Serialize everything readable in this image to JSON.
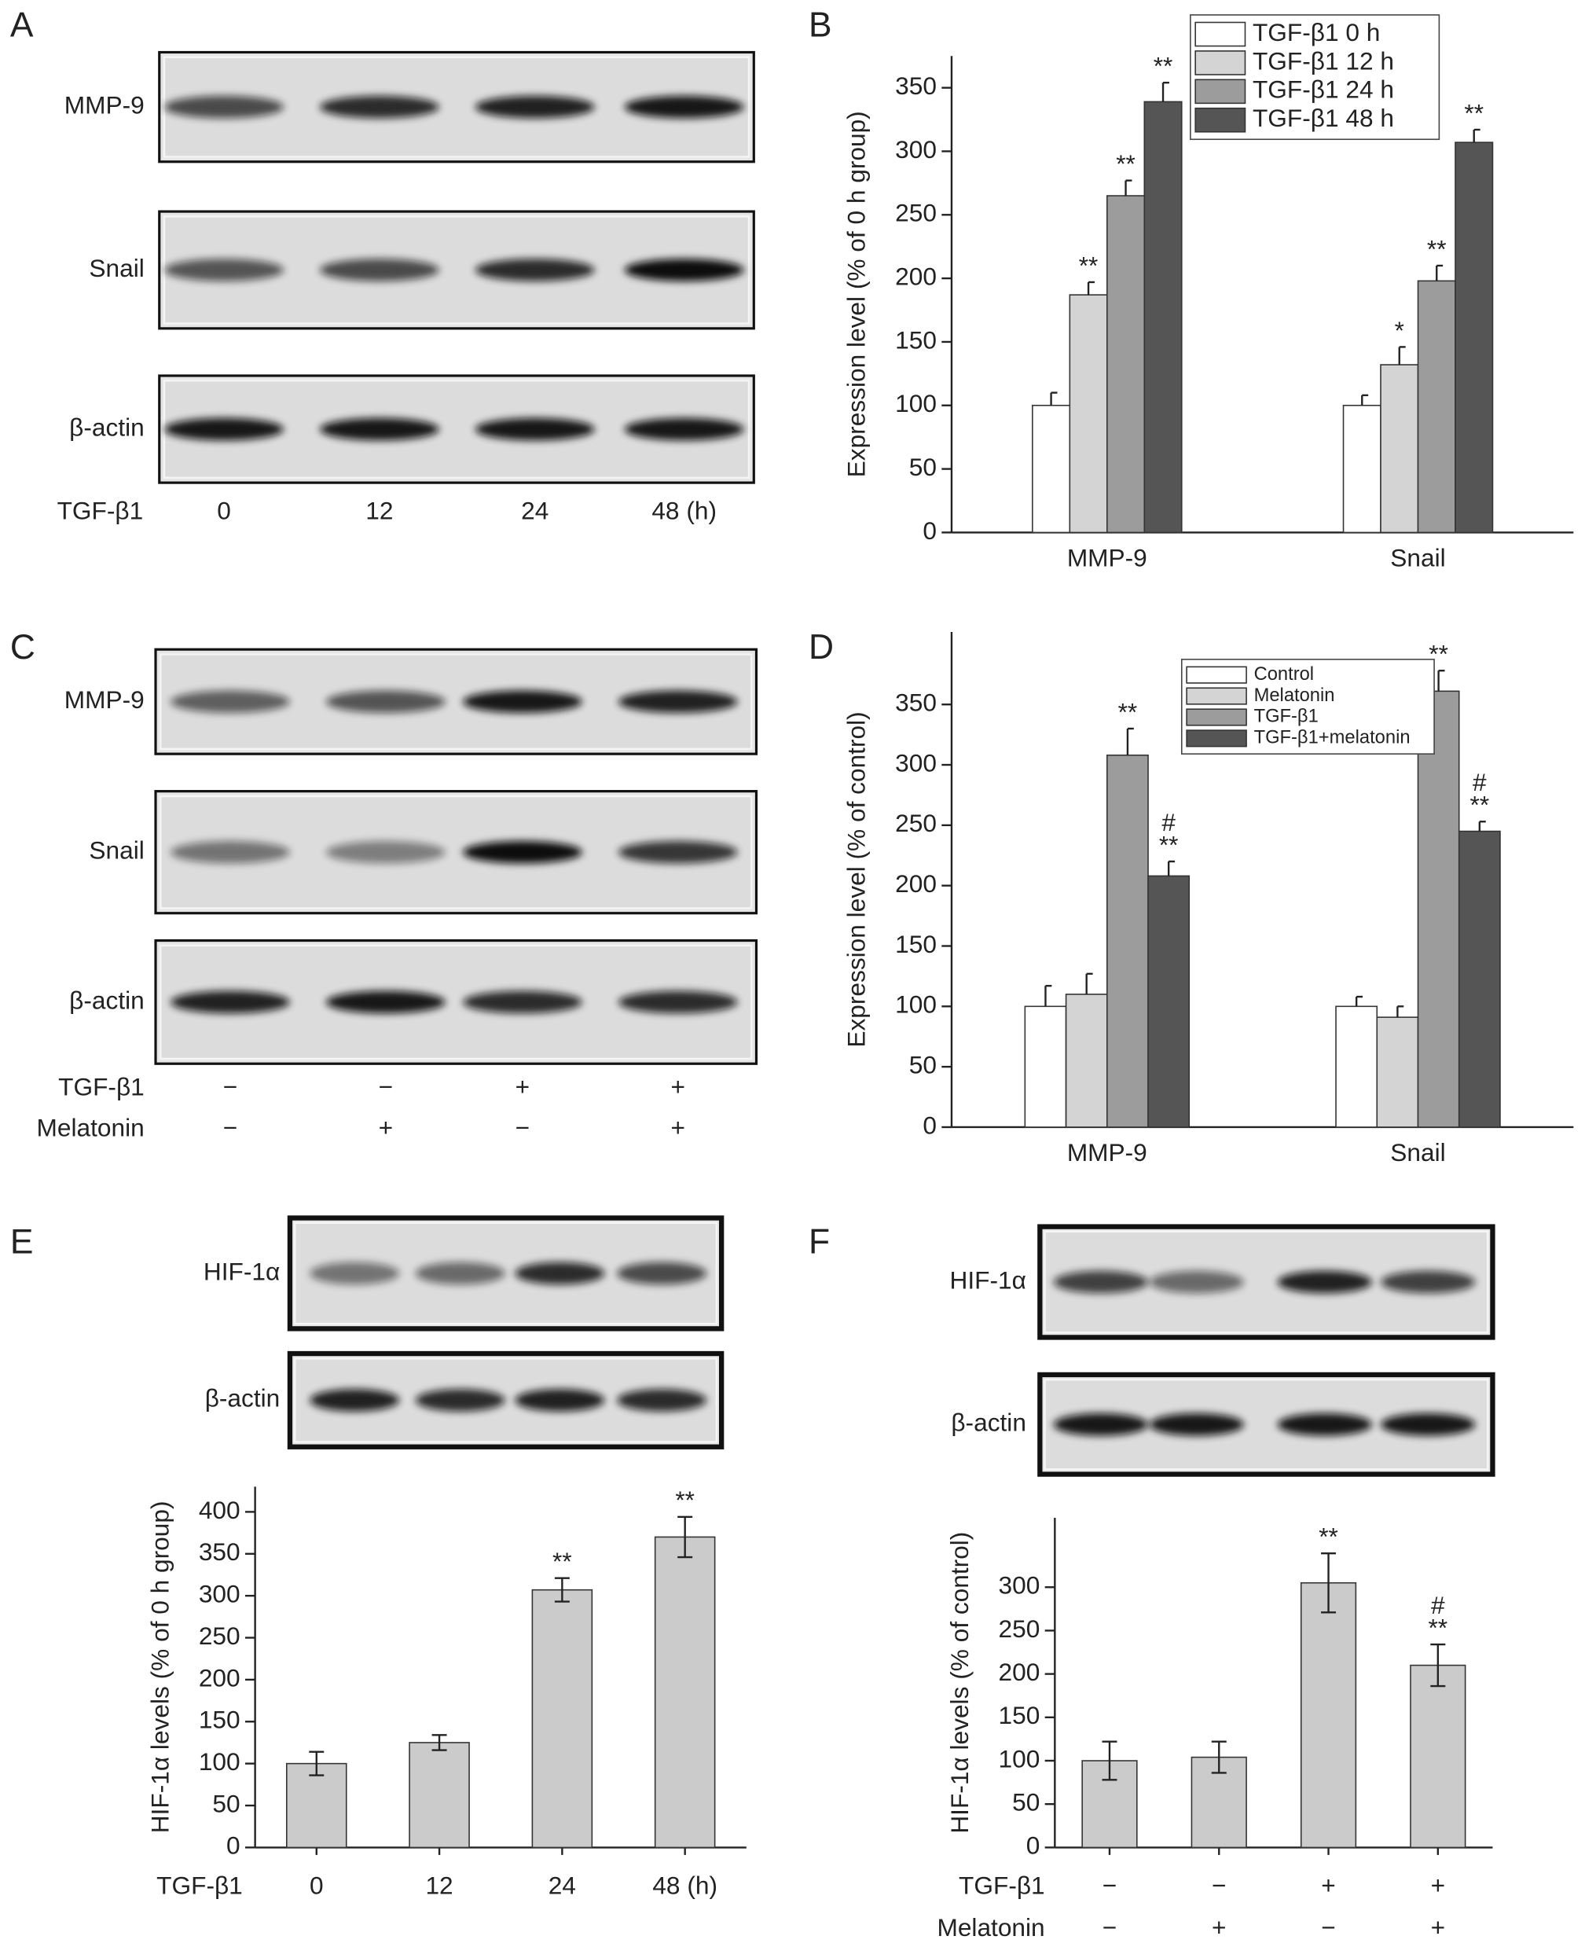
{
  "panel_labels": [
    "A",
    "B",
    "C",
    "D",
    "E",
    "F"
  ],
  "blots": [
    {
      "rows": [
        "MMP-9",
        "Snail",
        "β-actin"
      ],
      "treatments": [
        {
          "name": "TGF-β1",
          "labels": [
            "0",
            "12",
            "24",
            "48 (h)"
          ]
        }
      ]
    },
    {
      "rows": [
        "MMP-9",
        "Snail",
        "β-actin"
      ],
      "treatments": [
        {
          "name": "TGF-β1",
          "labels": [
            "−",
            "−",
            "+",
            "+"
          ]
        },
        {
          "name": "Melatonin",
          "labels": [
            "−",
            "+",
            "−",
            "+"
          ]
        }
      ]
    },
    {
      "rows": [
        "HIF-1α",
        "β-actin"
      ]
    },
    {
      "rows": [
        "HIF-1α",
        "β-actin"
      ]
    }
  ],
  "chart_data": [
    {
      "type": "bar",
      "ylabel": "Expression level (% of 0 h group)",
      "categories": [
        "MMP-9",
        "Snail"
      ],
      "series": [
        {
          "name": "TGF-β1  0 h",
          "color": "#ffffff",
          "values": [
            100,
            100
          ],
          "errors": [
            10,
            8
          ],
          "markers": [
            null,
            null
          ]
        },
        {
          "name": "TGF-β1  12 h",
          "color": "#d4d4d4",
          "values": [
            187,
            132
          ],
          "errors": [
            10,
            14
          ],
          "markers": [
            [
              "**"
            ],
            [
              "*"
            ]
          ]
        },
        {
          "name": "TGF-β1  24 h",
          "color": "#9c9c9c",
          "values": [
            265,
            198
          ],
          "errors": [
            12,
            12
          ],
          "markers": [
            [
              "**"
            ],
            [
              "**"
            ]
          ]
        },
        {
          "name": "TGF-β1  48 h",
          "color": "#555555",
          "values": [
            339,
            307
          ],
          "errors": [
            15,
            10
          ],
          "markers": [
            [
              "**"
            ],
            [
              "**"
            ]
          ]
        }
      ],
      "ylim": [
        0,
        375
      ],
      "yticks": [
        0,
        50,
        100,
        150,
        200,
        250,
        300,
        350
      ],
      "legend": "upper right",
      "error_direction": "up"
    },
    {
      "type": "bar",
      "ylabel": "Expression level (% of control)",
      "categories": [
        "MMP-9",
        "Snail"
      ],
      "series": [
        {
          "name": "Control",
          "color": "#ffffff",
          "values": [
            100,
            100
          ],
          "errors": [
            17,
            8
          ],
          "markers": [
            null,
            null
          ]
        },
        {
          "name": "Melatonin",
          "color": "#d4d4d4",
          "values": [
            110,
            91
          ],
          "errors": [
            17,
            9
          ],
          "markers": [
            null,
            null
          ]
        },
        {
          "name": "TGF-β1",
          "color": "#9c9c9c",
          "values": [
            308,
            361
          ],
          "errors": [
            22,
            17
          ],
          "markers": [
            [
              "**"
            ],
            [
              "**"
            ]
          ]
        },
        {
          "name": "TGF-β1+melatonin",
          "color": "#555555",
          "values": [
            208,
            245
          ],
          "errors": [
            12,
            8
          ],
          "markers": [
            [
              "#",
              "**"
            ],
            [
              "#",
              "**"
            ]
          ]
        }
      ],
      "ylim": [
        0,
        410
      ],
      "yticks": [
        0,
        50,
        100,
        150,
        200,
        250,
        300,
        350
      ],
      "legend": "upper right",
      "error_direction": "up"
    },
    {
      "type": "bar",
      "ylabel": "HIF-1α levels (% of 0 h group)",
      "xlabel": "TGF-β1",
      "categories": [
        "0",
        "12",
        "24",
        "48 (h)"
      ],
      "values": [
        100,
        125,
        307,
        370
      ],
      "errors": [
        14,
        9,
        14,
        24
      ],
      "markers": [
        null,
        null,
        [
          "**"
        ],
        [
          "**"
        ]
      ],
      "color": "#cbcbcb",
      "ylim": [
        0,
        430
      ],
      "yticks": [
        0,
        50,
        100,
        150,
        200,
        250,
        300,
        350,
        400
      ],
      "error_direction": "both"
    },
    {
      "type": "bar",
      "ylabel": "HIF-1α levels (% of control)",
      "treatments": [
        {
          "name": "TGF-β1",
          "labels": [
            "−",
            "−",
            "+",
            "+"
          ]
        },
        {
          "name": "Melatonin",
          "labels": [
            "−",
            "+",
            "−",
            "+"
          ]
        }
      ],
      "values": [
        100,
        104,
        305,
        210
      ],
      "errors": [
        22,
        18,
        34,
        24
      ],
      "markers": [
        null,
        null,
        [
          "**"
        ],
        [
          "#",
          "**"
        ]
      ],
      "color": "#cbcbcb",
      "ylim": [
        0,
        380
      ],
      "yticks": [
        0,
        50,
        100,
        150,
        200,
        250,
        300
      ],
      "error_direction": "both"
    }
  ]
}
